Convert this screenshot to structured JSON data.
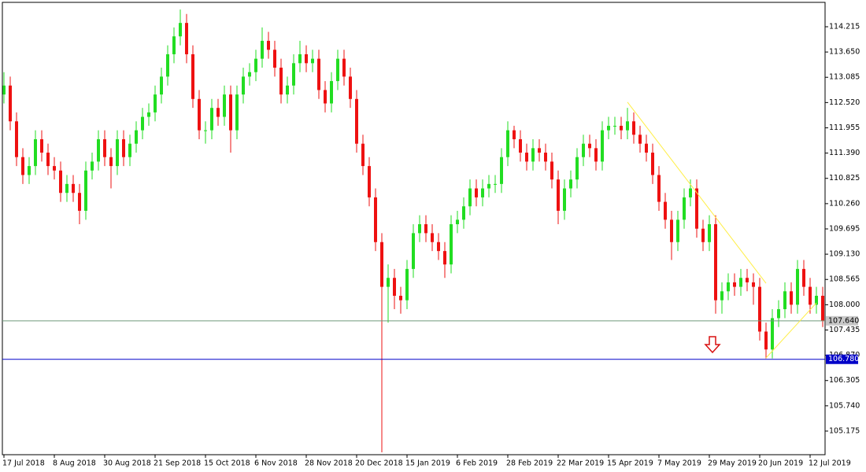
{
  "chart_data": {
    "type": "candlestick",
    "up_color": "#22dd22",
    "down_color": "#ee1111",
    "categories": [
      "17 Jul 2018",
      null,
      null,
      null,
      null,
      null,
      null,
      null,
      "8 Aug 2018",
      null,
      null,
      null,
      null,
      null,
      null,
      null,
      "30 Aug 2018",
      null,
      null,
      null,
      null,
      null,
      null,
      null,
      "21 Sep 2018",
      null,
      null,
      null,
      null,
      null,
      null,
      null,
      "15 Oct 2018",
      null,
      null,
      null,
      null,
      null,
      null,
      null,
      "6 Nov 2018",
      null,
      null,
      null,
      null,
      null,
      null,
      null,
      "28 Nov 2018",
      null,
      null,
      null,
      null,
      null,
      null,
      null,
      "20 Dec 2018",
      null,
      null,
      null,
      null,
      null,
      null,
      null,
      "15 Jan 2019",
      null,
      null,
      null,
      null,
      null,
      null,
      null,
      "6 Feb 2019",
      null,
      null,
      null,
      null,
      null,
      null,
      null,
      "28 Feb 2019",
      null,
      null,
      null,
      null,
      null,
      null,
      null,
      "22 Mar 2019",
      null,
      null,
      null,
      null,
      null,
      null,
      null,
      "15 Apr 2019",
      null,
      null,
      null,
      null,
      null,
      null,
      null,
      "7 May 2019",
      null,
      null,
      null,
      null,
      null,
      null,
      null,
      "29 May 2019",
      null,
      null,
      null,
      null,
      null,
      null,
      null,
      "20 Jun 2019",
      null,
      null,
      null,
      null,
      null,
      null,
      null,
      "12 Jul 2019",
      null,
      null
    ],
    "open": [
      112.7,
      112.9,
      112.1,
      111.3,
      110.9,
      111.1,
      111.7,
      111.4,
      111.1,
      111.0,
      110.5,
      110.7,
      110.5,
      110.1,
      111.0,
      111.2,
      111.7,
      111.3,
      111.1,
      111.7,
      111.3,
      111.6,
      111.9,
      112.2,
      112.3,
      112.7,
      113.1,
      113.6,
      114.0,
      114.3,
      113.6,
      112.6,
      111.9,
      111.9,
      112.4,
      112.2,
      112.7,
      111.9,
      112.7,
      113.1,
      113.2,
      113.5,
      113.9,
      113.7,
      113.3,
      112.7,
      112.9,
      113.4,
      113.6,
      113.4,
      113.5,
      112.8,
      112.5,
      113.0,
      113.5,
      113.1,
      112.6,
      111.6,
      111.1,
      110.4,
      109.4,
      108.4,
      108.6,
      108.2,
      108.1,
      108.8,
      109.6,
      109.8,
      109.6,
      109.4,
      109.2,
      108.9,
      109.8,
      109.9,
      110.2,
      110.6,
      110.4,
      110.6,
      110.7,
      110.7,
      111.3,
      111.9,
      111.7,
      111.4,
      111.2,
      111.5,
      111.4,
      111.2,
      110.8,
      110.1,
      110.6,
      110.8,
      111.3,
      111.6,
      111.5,
      111.2,
      111.9,
      112.0,
      112.0,
      111.9,
      112.1,
      111.8,
      111.6,
      111.4,
      110.9,
      110.3,
      109.9,
      109.4,
      109.9,
      110.4,
      110.6,
      109.7,
      109.4,
      109.8,
      108.1,
      108.3,
      108.5,
      108.4,
      108.6,
      108.5,
      108.4,
      107.4,
      107.0,
      107.7,
      107.9,
      108.3,
      108.0,
      108.8,
      108.4,
      108.0,
      108.2
    ],
    "high": [
      113.2,
      113.1,
      112.3,
      111.5,
      111.3,
      111.9,
      111.9,
      111.6,
      111.3,
      111.2,
      110.9,
      110.9,
      110.7,
      111.2,
      111.4,
      111.9,
      111.9,
      111.5,
      111.9,
      111.9,
      111.8,
      112.1,
      112.4,
      112.5,
      112.9,
      113.3,
      113.8,
      114.2,
      114.6,
      114.5,
      113.8,
      112.8,
      112.1,
      112.6,
      112.6,
      112.9,
      112.9,
      112.9,
      113.3,
      113.4,
      113.7,
      114.2,
      114.1,
      113.9,
      113.5,
      113.1,
      113.6,
      113.9,
      113.8,
      113.7,
      113.7,
      113.0,
      113.2,
      113.7,
      113.7,
      113.3,
      112.8,
      111.8,
      111.3,
      110.6,
      109.6,
      108.9,
      108.8,
      108.4,
      109.0,
      109.8,
      110.0,
      110.0,
      109.8,
      109.6,
      109.4,
      110.0,
      110.1,
      110.4,
      110.8,
      110.8,
      110.8,
      110.9,
      110.9,
      111.5,
      112.1,
      112.0,
      111.9,
      111.6,
      111.7,
      111.7,
      111.6,
      111.4,
      111.0,
      110.8,
      111.0,
      111.5,
      111.8,
      111.8,
      111.7,
      112.1,
      112.2,
      112.2,
      112.2,
      112.4,
      112.3,
      112.0,
      111.8,
      111.6,
      111.1,
      110.5,
      110.1,
      110.1,
      110.6,
      110.8,
      110.8,
      109.9,
      110.0,
      110.0,
      108.5,
      108.7,
      108.7,
      108.8,
      108.8,
      108.7,
      108.6,
      107.6,
      107.9,
      108.1,
      108.5,
      108.5,
      109.0,
      109.0,
      108.6,
      108.4,
      108.4
    ],
    "low": [
      112.5,
      111.9,
      111.1,
      110.7,
      110.7,
      110.9,
      111.2,
      110.9,
      110.8,
      110.3,
      110.3,
      110.3,
      109.8,
      109.9,
      110.8,
      111.0,
      111.1,
      110.6,
      110.9,
      111.1,
      111.1,
      111.4,
      111.7,
      112.0,
      112.1,
      112.5,
      112.9,
      113.4,
      113.8,
      113.4,
      112.4,
      111.7,
      111.6,
      111.7,
      112.0,
      112.0,
      111.4,
      111.7,
      112.5,
      112.9,
      113.0,
      113.3,
      113.5,
      113.1,
      112.5,
      112.5,
      112.7,
      113.2,
      113.2,
      113.2,
      112.6,
      112.3,
      112.3,
      112.8,
      112.9,
      112.4,
      111.4,
      110.9,
      110.2,
      109.2,
      104.7,
      107.6,
      107.9,
      107.8,
      107.9,
      108.6,
      109.4,
      109.4,
      109.2,
      109.0,
      108.6,
      108.7,
      109.6,
      109.7,
      110.0,
      110.2,
      110.2,
      110.4,
      110.5,
      110.5,
      111.1,
      111.5,
      111.2,
      111.0,
      111.0,
      111.2,
      111.0,
      110.6,
      109.8,
      109.9,
      110.4,
      110.6,
      111.1,
      111.3,
      111.0,
      111.0,
      111.7,
      111.8,
      111.7,
      111.7,
      111.6,
      111.4,
      111.2,
      110.7,
      110.1,
      109.7,
      109.0,
      109.2,
      109.7,
      110.2,
      109.5,
      109.2,
      109.2,
      107.8,
      107.8,
      108.1,
      108.2,
      108.2,
      108.3,
      108.0,
      107.2,
      106.8,
      106.8,
      107.5,
      107.7,
      107.8,
      107.8,
      108.2,
      107.8,
      107.8,
      107.5
    ],
    "close": [
      112.9,
      112.1,
      111.3,
      110.9,
      111.1,
      111.7,
      111.4,
      111.1,
      111.0,
      110.5,
      110.7,
      110.5,
      110.1,
      111.0,
      111.2,
      111.7,
      111.3,
      111.1,
      111.7,
      111.3,
      111.6,
      111.9,
      112.2,
      112.3,
      112.7,
      113.1,
      113.6,
      114.0,
      114.3,
      113.6,
      112.6,
      111.9,
      111.9,
      112.4,
      112.2,
      112.7,
      111.9,
      112.7,
      113.1,
      113.2,
      113.5,
      113.9,
      113.7,
      113.3,
      112.7,
      112.9,
      113.4,
      113.6,
      113.4,
      113.5,
      112.8,
      112.5,
      113.0,
      113.5,
      113.1,
      112.6,
      111.6,
      111.1,
      110.4,
      109.4,
      108.4,
      108.6,
      108.2,
      108.1,
      108.8,
      109.6,
      109.8,
      109.6,
      109.4,
      109.2,
      108.9,
      109.8,
      109.9,
      110.2,
      110.6,
      110.4,
      110.6,
      110.7,
      110.7,
      111.3,
      111.9,
      111.7,
      111.4,
      111.2,
      111.5,
      111.4,
      111.2,
      110.8,
      110.1,
      110.6,
      110.8,
      111.3,
      111.6,
      111.5,
      111.2,
      111.9,
      112.0,
      112.0,
      111.9,
      112.1,
      111.8,
      111.6,
      111.4,
      110.9,
      110.3,
      109.9,
      109.4,
      109.9,
      110.4,
      110.6,
      109.7,
      109.4,
      109.8,
      108.1,
      108.3,
      108.5,
      108.4,
      108.6,
      108.5,
      108.4,
      107.4,
      107.0,
      107.7,
      107.9,
      108.3,
      108.0,
      108.8,
      108.4,
      108.0,
      108.2,
      107.64
    ],
    "ylim": [
      104.647,
      114.76
    ],
    "yticks": [
      114.215,
      {
        "value": 113.65,
        "label": "113.650"
      },
      113.085,
      {
        "value": 112.52,
        "label": "112.520"
      },
      111.955,
      {
        "value": 111.39,
        "label": "111.390"
      },
      110.825,
      {
        "value": 110.26,
        "label": "110.260"
      },
      109.695,
      {
        "value": 109.13,
        "label": "109.130"
      },
      108.565,
      {
        "value": 108,
        "label": "108.000"
      },
      107.435,
      {
        "value": 106.87,
        "label": "106.870"
      },
      106.305,
      {
        "value": 105.74,
        "label": "105.740"
      },
      105.175
    ],
    "price_lines": [
      {
        "value": 107.64,
        "label": "107.640",
        "color": "#6f9a7b",
        "box": "#c8c8c8",
        "text_color": "#000000"
      },
      {
        "value": 106.78,
        "label": "106.780",
        "color": "#0000c8",
        "box": "#0000c8",
        "text_color": "#ffffff"
      }
    ],
    "trendline_color": "#ffee44",
    "trendlines": [
      {
        "x": [
          99,
          121
        ],
        "y": [
          112.53,
          108.48
        ]
      },
      {
        "x": [
          121,
          129
        ],
        "y": [
          106.81,
          108.04
        ]
      }
    ]
  }
}
